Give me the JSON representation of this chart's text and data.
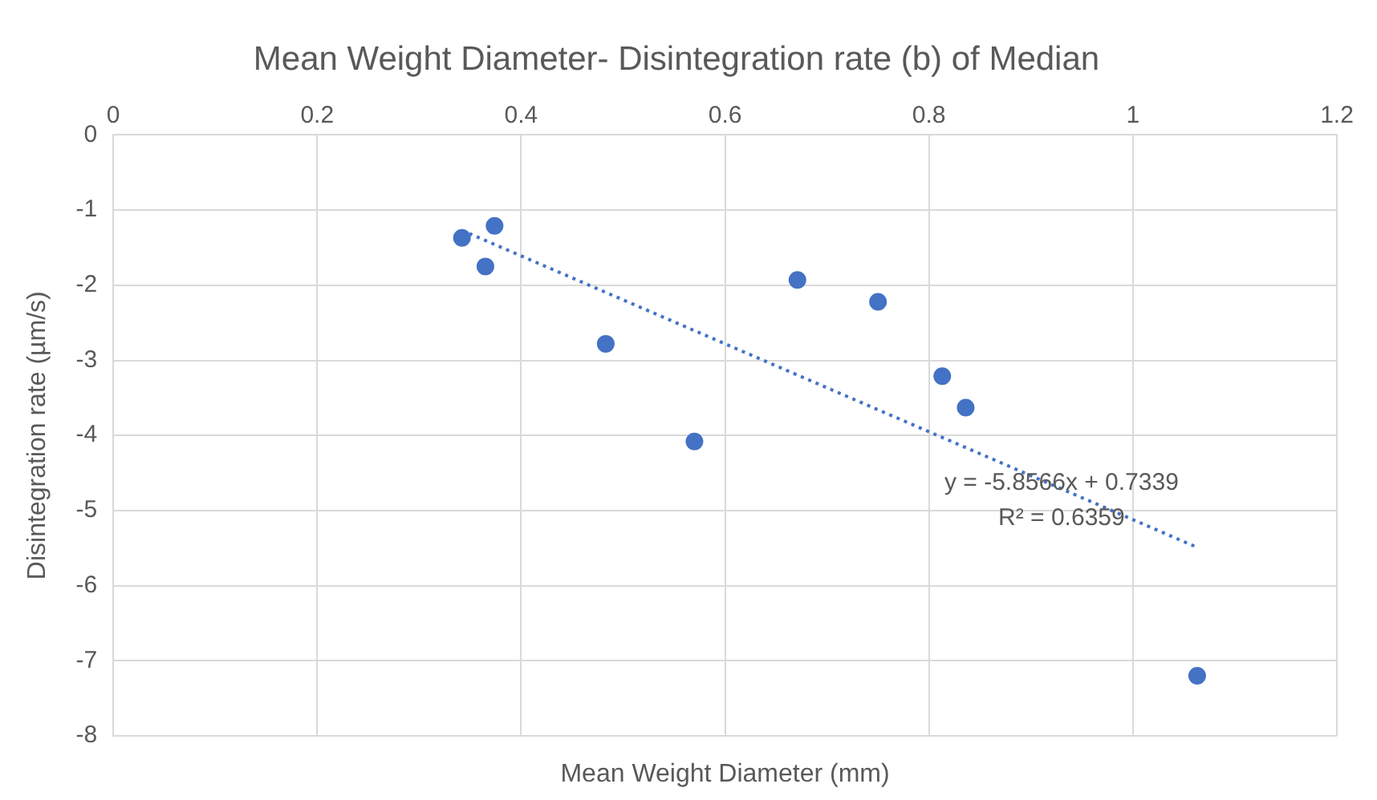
{
  "chart_data": {
    "type": "scatter",
    "title": "Mean Weight Diameter- Disintegration rate (b) of Median",
    "xlabel": "Mean Weight Diameter (mm)",
    "ylabel": "Disintegration rate (µm/s)",
    "xlim": [
      0,
      1.2
    ],
    "xticks": [
      0,
      0.2,
      0.4,
      0.6,
      0.8,
      1,
      1.2
    ],
    "ylim": [
      -8,
      0
    ],
    "yticks": [
      -8,
      -7,
      -6,
      -5,
      -4,
      -3,
      -2,
      -1,
      0
    ],
    "grid": true,
    "legend": false,
    "marker": "circle",
    "series": [
      {
        "color": "#4472c4",
        "x": [
          0.342,
          0.374,
          0.365,
          0.483,
          0.57,
          0.671,
          0.75,
          0.813,
          0.836,
          1.063
        ],
        "values": [
          -1.37,
          -1.21,
          -1.75,
          -2.78,
          -4.08,
          -1.93,
          -2.22,
          -3.21,
          -3.63,
          -7.2
        ]
      },
      {
        "type": "line",
        "color": "#4472c4",
        "marker": "none",
        "line_style": "dotted",
        "x": [
          0.342,
          1.063
        ],
        "values": [
          -1.27,
          -5.49
        ]
      }
    ],
    "annotations": [
      "y = -5.8566x + 0.7339",
      "R² = 0.6359"
    ]
  }
}
